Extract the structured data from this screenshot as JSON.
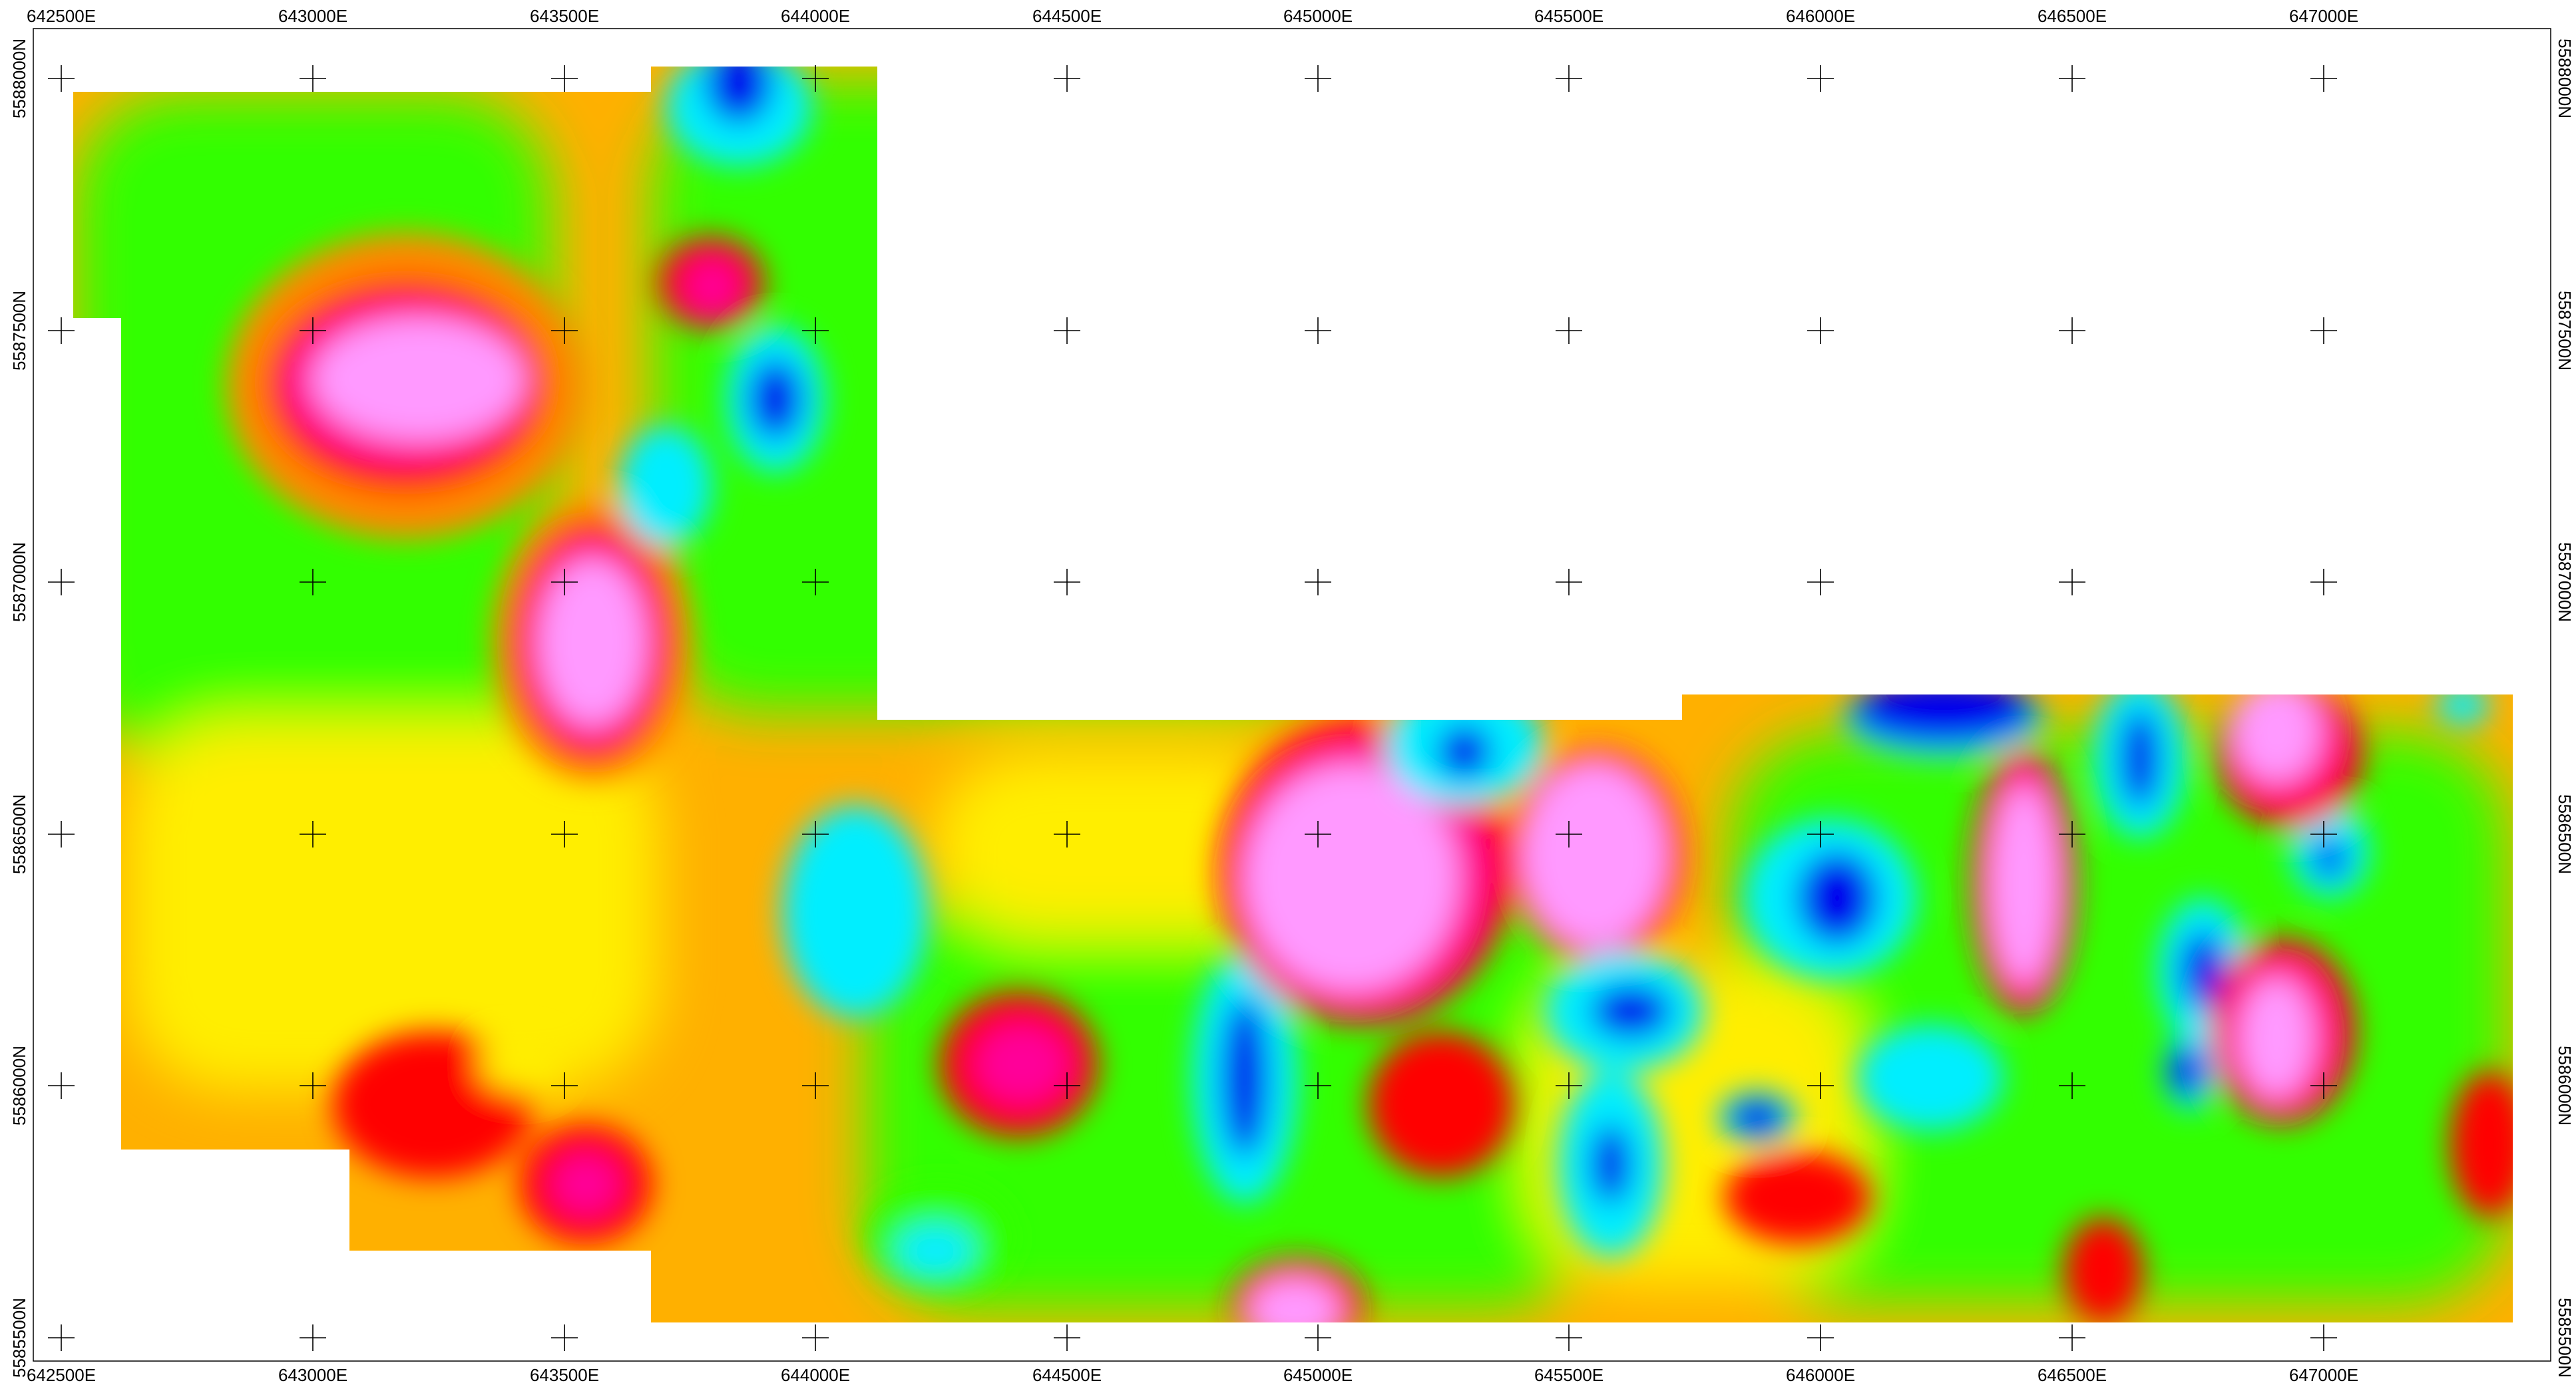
{
  "map": {
    "x_labels": [
      "642500E",
      "643000E",
      "643500E",
      "644000E",
      "644500E",
      "645000E",
      "645500E",
      "646000E",
      "646500E",
      "647000E"
    ],
    "y_labels": [
      "5588000N",
      "5587500N",
      "5587000N",
      "5586500N",
      "5586000N",
      "5585500N"
    ],
    "palette": {
      "magenta": "#ff99ff",
      "hot_pink": "#ff0099",
      "red": "#ff0000",
      "orange": "#ff8800",
      "yellow": "#ffee00",
      "yellow_green": "#ccff00",
      "green": "#33ff00",
      "cyan": "#00eeff",
      "blue": "#0000ee"
    }
  }
}
